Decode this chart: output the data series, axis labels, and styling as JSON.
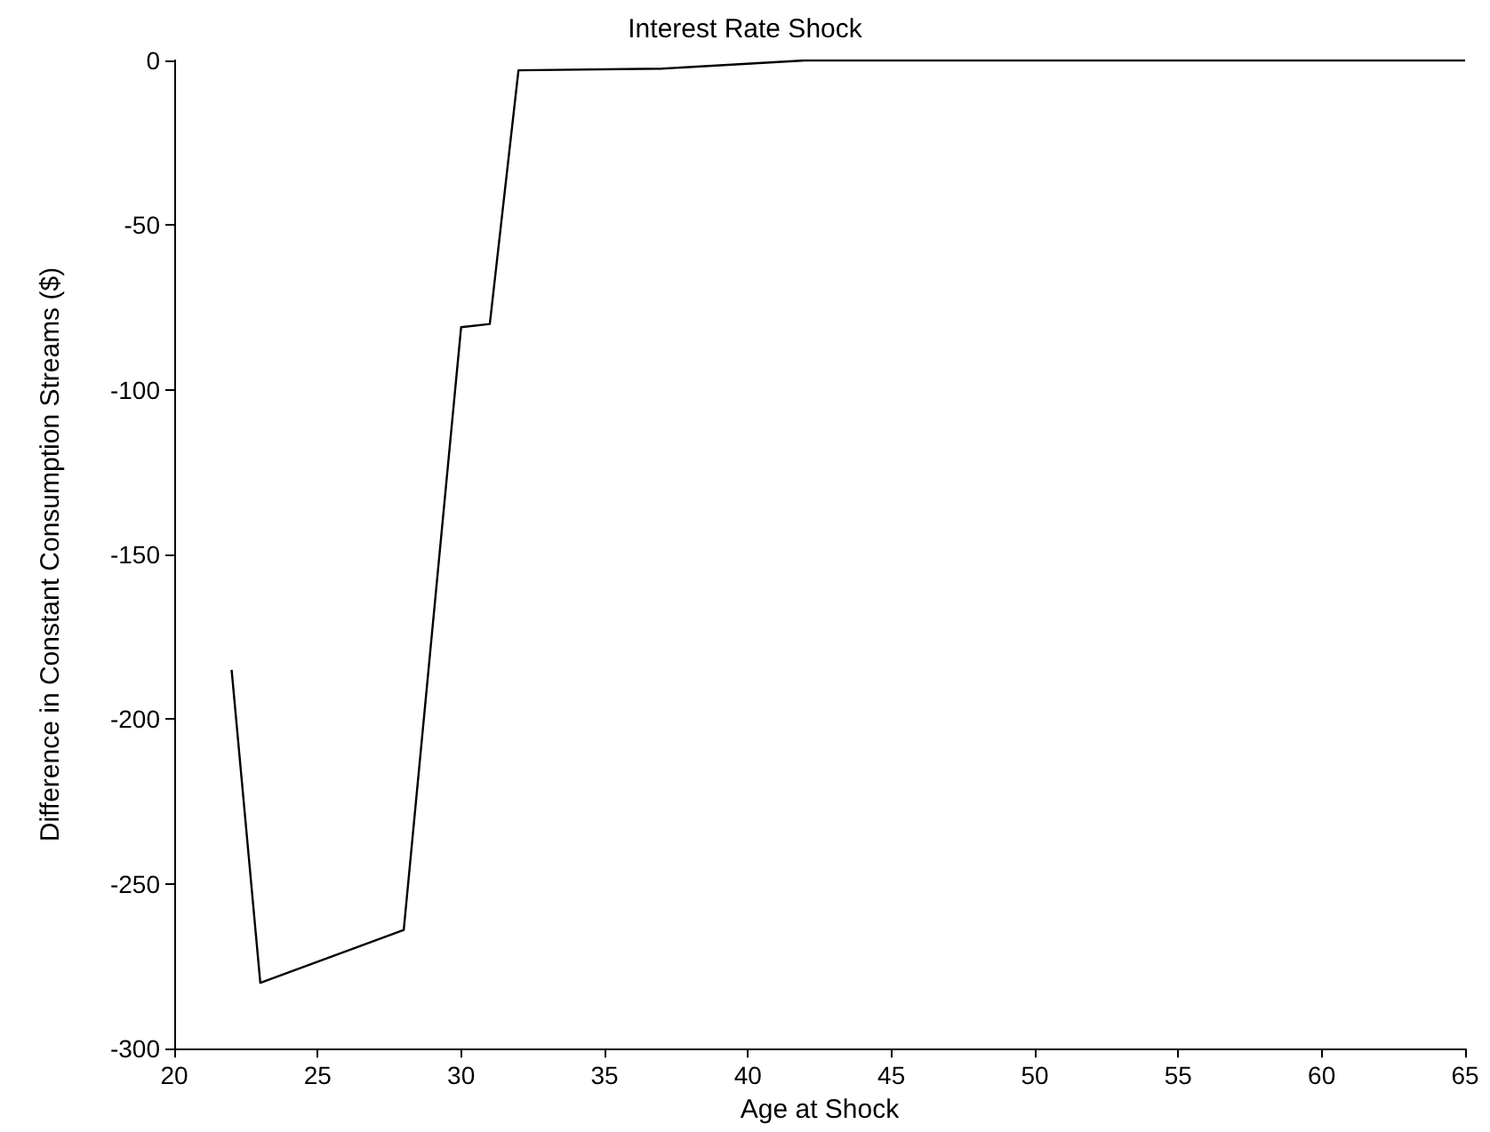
{
  "chart_data": {
    "type": "line",
    "title": "Interest Rate Shock",
    "xlabel": "Age at Shock",
    "ylabel": "Difference in Constant Consumption Streams ($)",
    "x": [
      22,
      23,
      28,
      30,
      31,
      32,
      37,
      42,
      65
    ],
    "series": [
      {
        "color": "#000000",
        "values": [
          -185,
          -280,
          -264,
          -81,
          -80,
          -3,
          -2.5,
          0,
          0
        ]
      }
    ],
    "xlim": [
      20,
      65
    ],
    "xticks": [
      20,
      25,
      30,
      35,
      40,
      45,
      50,
      55,
      60,
      65
    ],
    "ylim": [
      -300,
      0
    ],
    "yticks": [
      -300,
      -250,
      -200,
      -150,
      -100,
      -50,
      0
    ],
    "grid": false,
    "marker": "none",
    "line_style": "solid"
  }
}
